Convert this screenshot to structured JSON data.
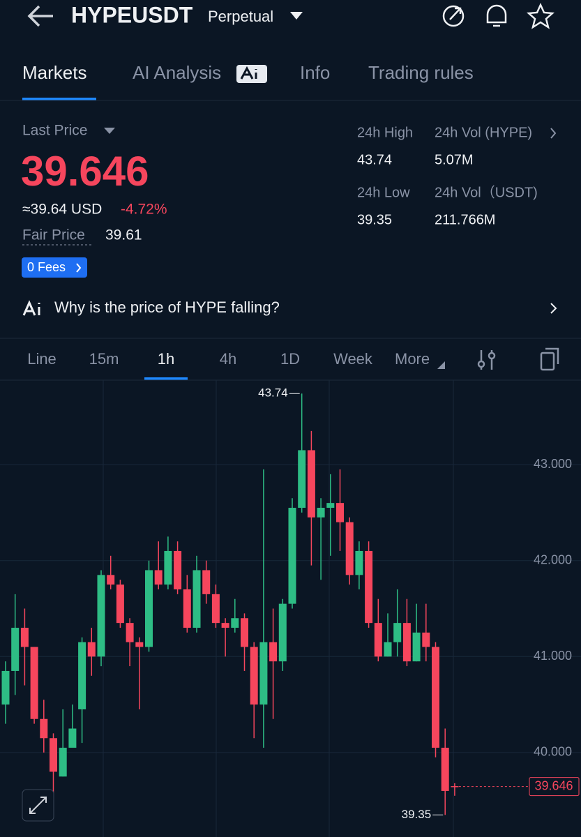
{
  "header": {
    "symbol": "HYPEUSDT",
    "contract": "Perpetual"
  },
  "tabs": [
    "Markets",
    "AI Analysis",
    "Info",
    "Trading rules"
  ],
  "ticker": {
    "last_price_label": "Last Price",
    "last_price": "39.646",
    "usd_price": "≈39.64 USD",
    "change": "-4.72%",
    "fair_price_label": "Fair Price",
    "fair_price": "39.61",
    "fees_button": "0 Fees",
    "stats": [
      {
        "label": "24h High",
        "value": "43.74"
      },
      {
        "label": "24h Vol (HYPE)",
        "value": "5.07M"
      },
      {
        "label": "24h Low",
        "value": "39.35"
      },
      {
        "label": "24h Vol（USDT)",
        "value": "211.766M"
      }
    ]
  },
  "ai_prompt": "Why is the price of HYPE falling?",
  "intervals": [
    "Line",
    "15m",
    "1h",
    "4h",
    "1D",
    "Week",
    "More"
  ],
  "chart_data": {
    "type": "candlestick",
    "open": [
      40.5,
      40.85,
      41.3,
      41.1,
      40.35,
      40.15,
      39.75,
      40.05,
      40.45,
      41.15,
      41.0,
      41.85,
      41.75,
      41.35,
      41.15,
      41.1,
      41.9,
      41.75,
      42.1,
      41.7,
      41.3,
      41.9,
      41.65,
      41.35,
      41.3,
      41.4,
      41.1,
      40.5,
      41.15,
      40.95,
      41.55,
      42.55,
      43.15,
      42.45,
      42.55,
      42.6,
      42.4,
      41.85,
      42.1,
      41.35,
      41.0,
      41.15,
      41.35,
      40.95,
      41.25,
      41.1,
      40.05,
      39.65
    ],
    "high": [
      40.95,
      41.65,
      41.5,
      41.1,
      40.55,
      40.2,
      40.45,
      40.5,
      41.2,
      41.3,
      41.9,
      42.05,
      41.8,
      41.4,
      41.2,
      42.0,
      42.2,
      42.25,
      42.2,
      41.85,
      42.05,
      42.0,
      41.75,
      41.4,
      41.6,
      41.45,
      41.15,
      42.95,
      41.5,
      41.6,
      42.65,
      43.74,
      43.35,
      42.65,
      42.9,
      42.95,
      42.45,
      42.2,
      42.2,
      41.6,
      41.45,
      41.7,
      41.6,
      41.55,
      41.55,
      41.15,
      40.25,
      39.68
    ],
    "low": [
      40.3,
      40.6,
      40.7,
      40.3,
      40.0,
      39.55,
      39.75,
      40.05,
      40.1,
      40.8,
      40.9,
      41.7,
      41.3,
      40.9,
      40.45,
      41.05,
      41.7,
      41.7,
      41.65,
      41.25,
      41.25,
      41.55,
      41.3,
      41.0,
      41.25,
      40.85,
      40.15,
      40.05,
      40.35,
      40.85,
      41.5,
      42.5,
      41.95,
      41.8,
      42.05,
      42.1,
      41.75,
      41.7,
      41.3,
      40.95,
      41.0,
      41.0,
      40.9,
      40.95,
      40.95,
      39.95,
      39.35,
      39.55
    ],
    "close": [
      40.85,
      41.3,
      41.1,
      40.35,
      40.15,
      39.8,
      40.05,
      40.25,
      41.15,
      41.0,
      41.85,
      41.75,
      41.35,
      41.15,
      41.1,
      41.9,
      41.75,
      42.1,
      41.7,
      41.3,
      41.9,
      41.65,
      41.35,
      41.3,
      41.4,
      41.1,
      40.5,
      41.15,
      40.95,
      41.55,
      42.55,
      43.15,
      42.45,
      42.55,
      42.6,
      42.4,
      41.85,
      42.1,
      41.35,
      41.0,
      41.15,
      41.35,
      40.95,
      41.25,
      41.1,
      40.05,
      39.6,
      39.646
    ],
    "up_color": "#2ebd85",
    "down_color": "#f6465d",
    "ylim": [
      39.12,
      43.88
    ],
    "yticks": [
      {
        "value": 40,
        "label": "40.000"
      },
      {
        "value": 41,
        "label": "41.000"
      },
      {
        "value": 42,
        "label": "42.000"
      },
      {
        "value": 43,
        "label": "43.000"
      }
    ],
    "grid": true,
    "annotations": {
      "high": 43.74,
      "low": 39.35,
      "last": 39.646
    }
  }
}
